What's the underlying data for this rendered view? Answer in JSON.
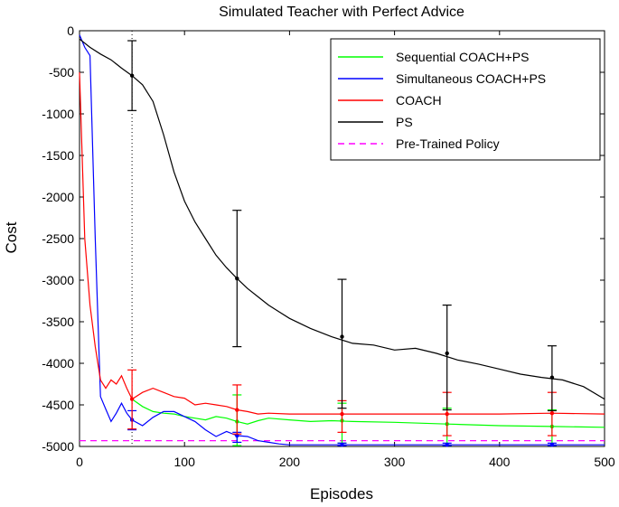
{
  "chart_data": {
    "type": "line",
    "title": "Simulated Teacher with Perfect Advice",
    "xlabel": "Episodes",
    "ylabel": "Cost",
    "xlim": [
      0,
      500
    ],
    "ylim": [
      -5000,
      0
    ],
    "xticks": [
      "0",
      "100",
      "200",
      "300",
      "400",
      "500"
    ],
    "yticks": [
      "0",
      "-500",
      "-1000",
      "-1500",
      "-2000",
      "-2500",
      "-3000",
      "-3500",
      "-4000",
      "-4500",
      "-5000"
    ],
    "grid": false,
    "legend_position": "top-right",
    "vertical_marker_x": 50,
    "series": [
      {
        "name": "Sequential COACH+PS",
        "color": "#00ff00",
        "line_style": "solid",
        "x": [
          50,
          60,
          70,
          80,
          90,
          100,
          110,
          120,
          130,
          140,
          150,
          160,
          170,
          180,
          200,
          220,
          240,
          260,
          300,
          350,
          400,
          450,
          500
        ],
        "y": [
          -4430,
          -4520,
          -4580,
          -4600,
          -4610,
          -4640,
          -4660,
          -4680,
          -4640,
          -4660,
          -4700,
          -4730,
          -4690,
          -4660,
          -4680,
          -4700,
          -4690,
          -4700,
          -4710,
          -4730,
          -4750,
          -4760,
          -4770
        ],
        "error_x": [
          150,
          250,
          350,
          450
        ],
        "error_low": [
          -4990,
          -4960,
          -4990,
          -4990
        ],
        "error_high": [
          -4380,
          -4480,
          -4540,
          -4560
        ]
      },
      {
        "name": "Simultaneous COACH+PS",
        "color": "#0000ff",
        "line_style": "solid",
        "x": [
          0,
          5,
          10,
          15,
          20,
          25,
          30,
          35,
          40,
          45,
          50,
          60,
          70,
          80,
          90,
          100,
          110,
          120,
          130,
          140,
          150,
          160,
          170,
          180,
          190,
          200,
          250,
          300,
          350,
          400,
          450,
          500
        ],
        "y": [
          -50,
          -200,
          -300,
          -2500,
          -4400,
          -4550,
          -4700,
          -4600,
          -4480,
          -4600,
          -4680,
          -4750,
          -4650,
          -4580,
          -4580,
          -4640,
          -4700,
          -4800,
          -4880,
          -4820,
          -4870,
          -4880,
          -4930,
          -4950,
          -4970,
          -4980,
          -4980,
          -4980,
          -4980,
          -4980,
          -4980,
          -4980
        ],
        "error_x": [
          50,
          150,
          250,
          350,
          450
        ],
        "error_low": [
          -4800,
          -4950,
          -4990,
          -4990,
          -4990
        ],
        "error_high": [
          -4570,
          -4830,
          -4960,
          -4960,
          -4960
        ]
      },
      {
        "name": "COACH",
        "color": "#ff0000",
        "line_style": "solid",
        "x": [
          0,
          5,
          10,
          15,
          20,
          25,
          30,
          35,
          40,
          45,
          50,
          60,
          70,
          80,
          90,
          100,
          110,
          120,
          130,
          140,
          150,
          160,
          170,
          180,
          200,
          250,
          300,
          350,
          400,
          450,
          500
        ],
        "y": [
          -500,
          -2500,
          -3300,
          -3800,
          -4200,
          -4300,
          -4200,
          -4250,
          -4150,
          -4300,
          -4430,
          -4350,
          -4300,
          -4350,
          -4400,
          -4420,
          -4500,
          -4480,
          -4500,
          -4520,
          -4560,
          -4580,
          -4610,
          -4600,
          -4610,
          -4610,
          -4610,
          -4610,
          -4610,
          -4600,
          -4610
        ],
        "error_x": [
          50,
          150,
          250,
          350,
          450
        ],
        "error_low": [
          -4790,
          -4850,
          -4830,
          -4870,
          -4870
        ],
        "error_high": [
          -4080,
          -4260,
          -4450,
          -4350,
          -4350
        ]
      },
      {
        "name": "PS",
        "color": "#000000",
        "line_style": "solid",
        "x": [
          0,
          10,
          20,
          30,
          40,
          50,
          60,
          70,
          80,
          90,
          100,
          110,
          120,
          130,
          140,
          150,
          160,
          170,
          180,
          190,
          200,
          220,
          240,
          260,
          280,
          300,
          320,
          340,
          360,
          380,
          400,
          420,
          440,
          460,
          480,
          500
        ],
        "y": [
          -100,
          -200,
          -280,
          -350,
          -450,
          -540,
          -650,
          -850,
          -1250,
          -1700,
          -2050,
          -2300,
          -2500,
          -2700,
          -2850,
          -2980,
          -3100,
          -3200,
          -3300,
          -3380,
          -3460,
          -3580,
          -3680,
          -3760,
          -3780,
          -3840,
          -3820,
          -3880,
          -3960,
          -4010,
          -4070,
          -4130,
          -4170,
          -4200,
          -4280,
          -4430
        ],
        "error_x": [
          50,
          150,
          250,
          350,
          450
        ],
        "error_low": [
          -960,
          -3800,
          -4540,
          -4560,
          -4570
        ],
        "error_high": [
          -120,
          -2160,
          -2990,
          -3300,
          -3790
        ]
      },
      {
        "name": "Pre-Trained Policy",
        "color": "#ff00ff",
        "line_style": "dashed",
        "x": [
          0,
          500
        ],
        "y": [
          -4930,
          -4930
        ]
      }
    ]
  }
}
